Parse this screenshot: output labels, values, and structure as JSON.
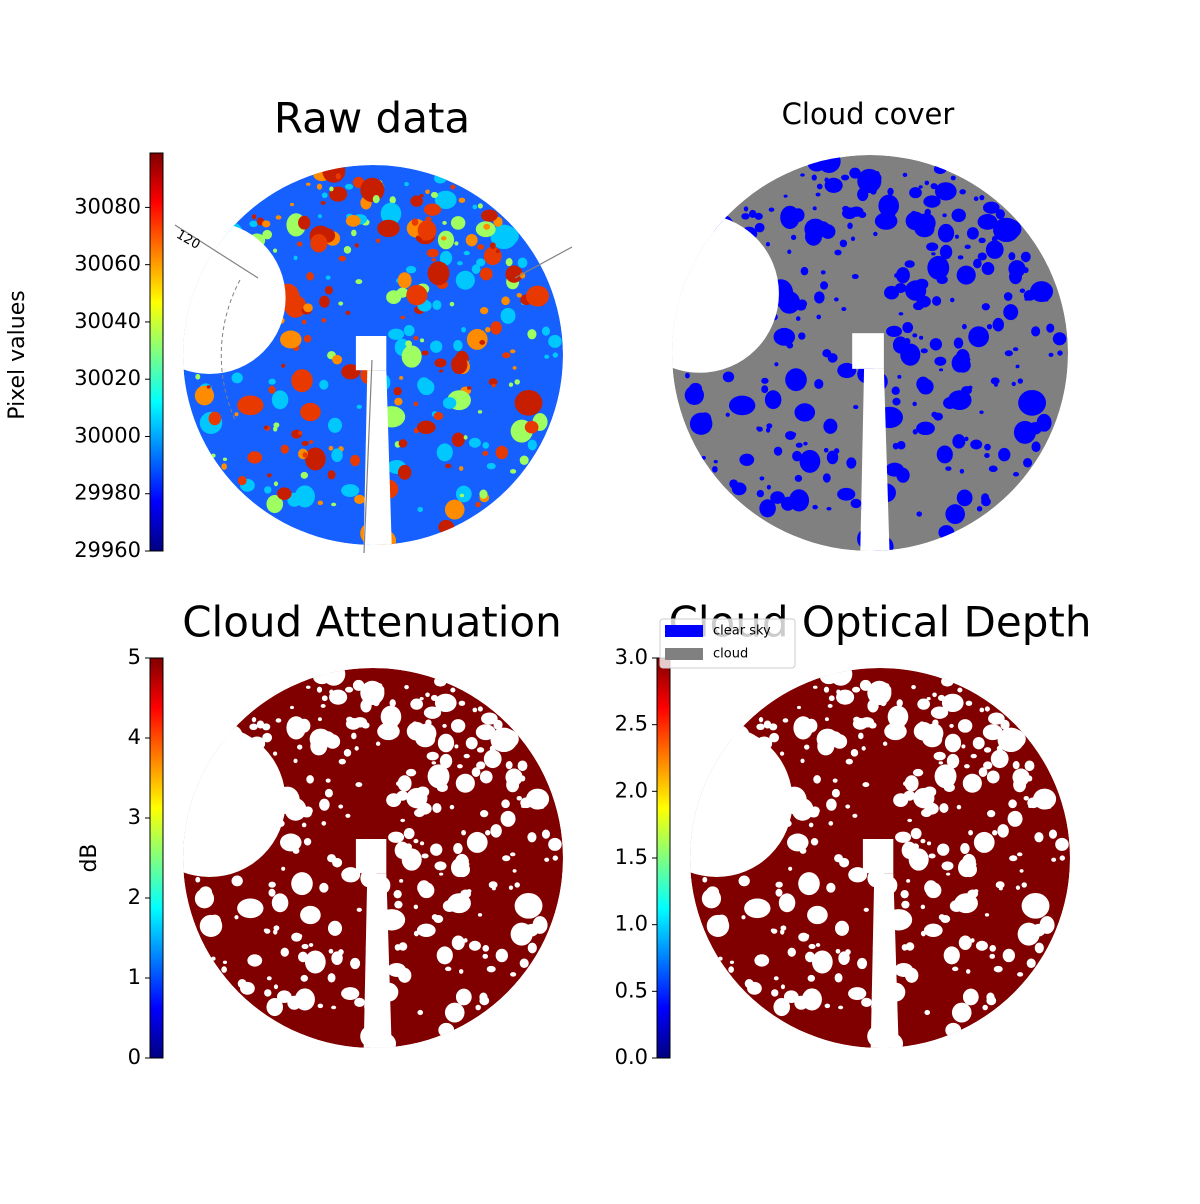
{
  "chart_data": [
    {
      "type": "image",
      "title": "Raw data",
      "colormap": "jet",
      "colorbar": {
        "label": "Pixel values",
        "ylim": [
          29960,
          30099
        ],
        "yticks": [
          29960,
          29980,
          30000,
          30020,
          30040,
          30060,
          30080
        ]
      },
      "annotations": [
        "120"
      ]
    },
    {
      "type": "image",
      "title": "Cloud cover",
      "series": [
        {
          "name": "clear sky",
          "color": "#0000ff"
        },
        {
          "name": "cloud",
          "color": "#808080"
        }
      ]
    },
    {
      "type": "image",
      "title": "Cloud Attenuation",
      "colormap": "jet",
      "colorbar": {
        "label": "dB",
        "ylim": [
          0,
          5
        ],
        "yticks": [
          0,
          1,
          2,
          3,
          4,
          5
        ]
      }
    },
    {
      "type": "image",
      "title": "Cloud Optical Depth",
      "colormap": "jet",
      "colorbar": {
        "ylim": [
          0,
          3
        ],
        "yticks": [
          {
            "value": 0,
            "label": "0.0"
          },
          {
            "value": 0.5,
            "label": "0.5"
          },
          {
            "value": 1,
            "label": "1.0"
          },
          {
            "value": 1.5,
            "label": "1.5"
          },
          {
            "value": 2,
            "label": "2.0"
          },
          {
            "value": 2.5,
            "label": "2.5"
          },
          {
            "value": 3,
            "label": "3.0"
          }
        ]
      }
    }
  ]
}
